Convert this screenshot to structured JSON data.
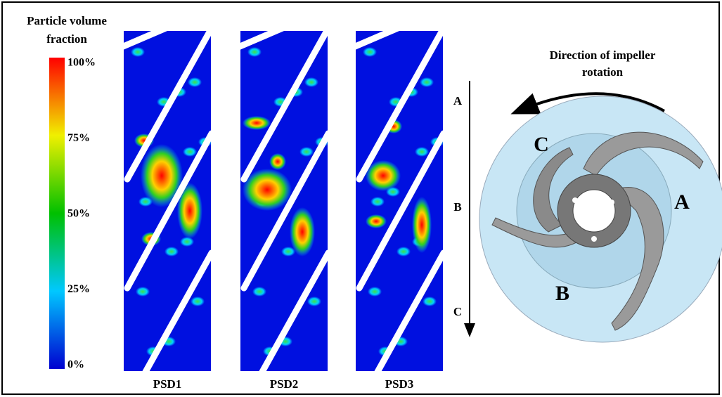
{
  "legend": {
    "title_lines": [
      "Particle volume",
      "fraction"
    ],
    "ticks": [
      "100%",
      "75%",
      "50%",
      "25%",
      "0%"
    ]
  },
  "panels": [
    {
      "label": "PSD1"
    },
    {
      "label": "PSD2"
    },
    {
      "label": "PSD3"
    }
  ],
  "flow_arrow": {
    "labels": [
      "A",
      "B",
      "C"
    ]
  },
  "impeller": {
    "caption_lines": [
      "Direction of impeller",
      "rotation"
    ],
    "labels": [
      "A",
      "B",
      "C"
    ]
  }
}
